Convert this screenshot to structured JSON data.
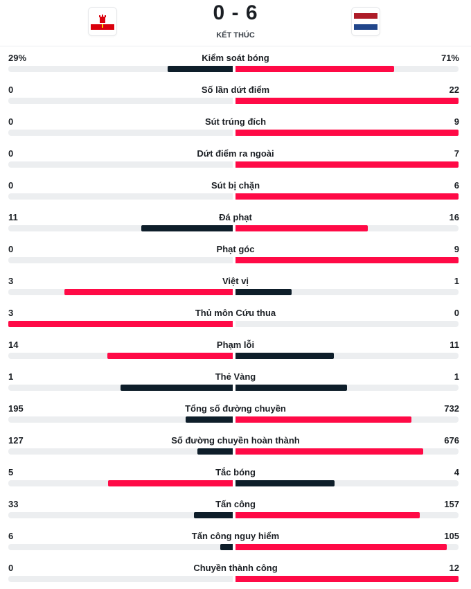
{
  "match": {
    "score": "0 - 6",
    "status": "KẾT THÚC",
    "home_flag": "gibraltar-flag-icon",
    "away_flag": "netherlands-flag-icon"
  },
  "colors": {
    "dark": "#0e1e2a",
    "red": "#ff0a46",
    "track": "#eceef0"
  },
  "stats": [
    {
      "label": "Kiểm soát bóng",
      "home": "29%",
      "away": "71%",
      "home_val": 29,
      "away_val": 71
    },
    {
      "label": "Số lần dứt điểm",
      "home": "0",
      "away": "22",
      "home_val": 0,
      "away_val": 22
    },
    {
      "label": "Sút trúng đích",
      "home": "0",
      "away": "9",
      "home_val": 0,
      "away_val": 9
    },
    {
      "label": "Dứt điểm ra ngoài",
      "home": "0",
      "away": "7",
      "home_val": 0,
      "away_val": 7
    },
    {
      "label": "Sút bị chặn",
      "home": "0",
      "away": "6",
      "home_val": 0,
      "away_val": 6
    },
    {
      "label": "Đá phạt",
      "home": "11",
      "away": "16",
      "home_val": 11,
      "away_val": 16
    },
    {
      "label": "Phạt góc",
      "home": "0",
      "away": "9",
      "home_val": 0,
      "away_val": 9
    },
    {
      "label": "Việt vị",
      "home": "3",
      "away": "1",
      "home_val": 3,
      "away_val": 1
    },
    {
      "label": "Thủ môn Cứu thua",
      "home": "3",
      "away": "0",
      "home_val": 3,
      "away_val": 0
    },
    {
      "label": "Phạm lỗi",
      "home": "14",
      "away": "11",
      "home_val": 14,
      "away_val": 11
    },
    {
      "label": "Thẻ Vàng",
      "home": "1",
      "away": "1",
      "home_val": 1,
      "away_val": 1
    },
    {
      "label": "Tổng số đường chuyền",
      "home": "195",
      "away": "732",
      "home_val": 195,
      "away_val": 732
    },
    {
      "label": "Số đường chuyền hoàn thành",
      "home": "127",
      "away": "676",
      "home_val": 127,
      "away_val": 676
    },
    {
      "label": "Tắc bóng",
      "home": "5",
      "away": "4",
      "home_val": 5,
      "away_val": 4
    },
    {
      "label": "Tấn công",
      "home": "33",
      "away": "157",
      "home_val": 33,
      "away_val": 157
    },
    {
      "label": "Tấn công nguy hiểm",
      "home": "6",
      "away": "105",
      "home_val": 6,
      "away_val": 105
    },
    {
      "label": "Chuyền thành công",
      "home": "0",
      "away": "12",
      "home_val": 0,
      "away_val": 12
    }
  ]
}
